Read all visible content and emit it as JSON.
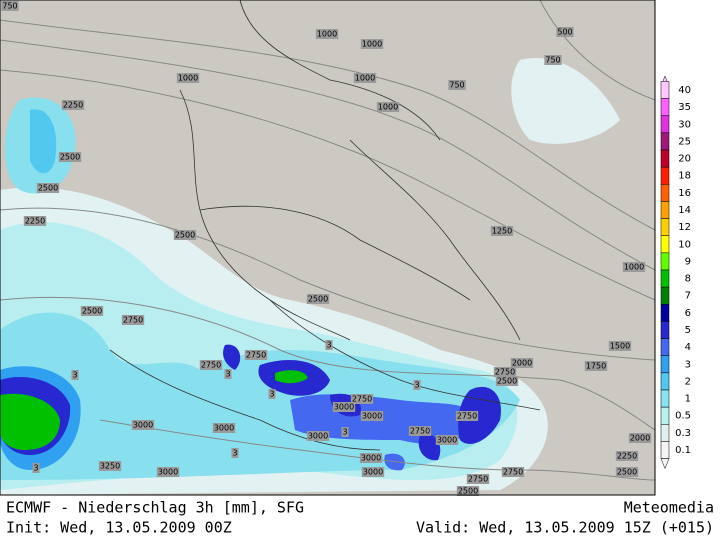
{
  "map": {
    "contour_labels": [
      "750",
      "1000",
      "1000",
      "500",
      "750",
      "1000",
      "1000",
      "750",
      "1000",
      "2250",
      "2500",
      "2500",
      "2250",
      "2500",
      "1250",
      "1000",
      "2500",
      "2500",
      "2750",
      "1500",
      "2000",
      "1750",
      "2750",
      "2750",
      "2750",
      "2500",
      "3",
      "3",
      "3",
      "3",
      "3",
      "2750",
      "3000",
      "3000",
      "2750",
      "3000",
      "3000",
      "3000",
      "3",
      "2750",
      "3000",
      "3",
      "2000",
      "3250",
      "3000",
      "3000",
      "3",
      "2250",
      "2500",
      "2750",
      "2750",
      "2500",
      "3000"
    ],
    "legend": [
      {
        "label": "40",
        "color": "#ffc8ff"
      },
      {
        "label": "35",
        "color": "#ff60ff"
      },
      {
        "label": "30",
        "color": "#e030e0"
      },
      {
        "label": "25",
        "color": "#a01878"
      },
      {
        "label": "20",
        "color": "#c00028"
      },
      {
        "label": "18",
        "color": "#ff2000"
      },
      {
        "label": "16",
        "color": "#ff6000"
      },
      {
        "label": "14",
        "color": "#ffa000"
      },
      {
        "label": "12",
        "color": "#ffd000"
      },
      {
        "label": "10",
        "color": "#ffff00"
      },
      {
        "label": "9",
        "color": "#60ff00"
      },
      {
        "label": "8",
        "color": "#00c000"
      },
      {
        "label": "7",
        "color": "#008000"
      },
      {
        "label": "6",
        "color": "#0000a0"
      },
      {
        "label": "5",
        "color": "#2828d0"
      },
      {
        "label": "4",
        "color": "#4468f0"
      },
      {
        "label": "3",
        "color": "#30a0f0"
      },
      {
        "label": "2",
        "color": "#50c8f0"
      },
      {
        "label": "1",
        "color": "#88e4f0"
      },
      {
        "label": "0.5",
        "color": "#b8f0f0"
      },
      {
        "label": "0.3",
        "color": "#e0f0f0"
      },
      {
        "label": "0.1",
        "color": "#f4f4f4"
      }
    ],
    "footer": {
      "title": "ECMWF - Niederschlag 3h [mm], SFG",
      "brand": "Meteomedia",
      "init": "Init: Wed, 13.05.2009 00Z",
      "valid": "Valid: Wed, 13.05.2009 15Z (+015)"
    }
  }
}
